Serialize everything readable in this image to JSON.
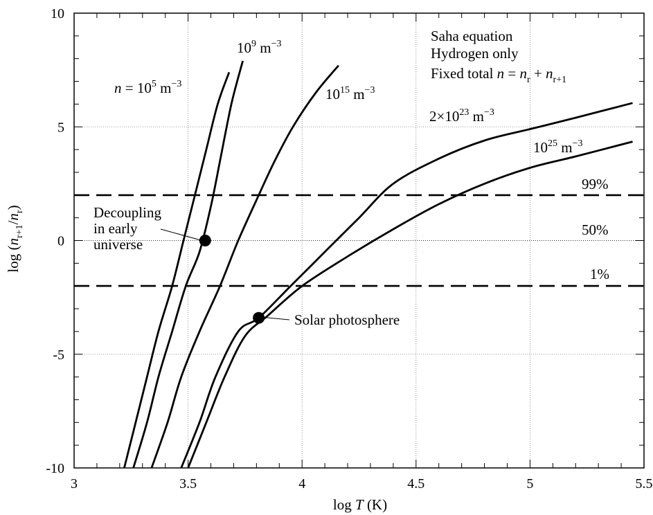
{
  "chart_data": {
    "type": "line",
    "xlabel": "log T (K)",
    "ylabel": "log (n_{r+1}/n_r)",
    "xlim": [
      3,
      5.5
    ],
    "ylim": [
      -10,
      10
    ],
    "x_ticks": [
      "3",
      "3.5",
      "4",
      "4.5",
      "5",
      "5.5"
    ],
    "y_ticks": [
      "-10",
      "-5",
      "0",
      "5",
      "10"
    ],
    "grid": true,
    "info_lines": [
      "Saha equation",
      "Hydrogen only",
      "Fixed total n = n_r + n_{r+1}"
    ],
    "reference_lines": [
      {
        "y": 1.995,
        "style": "dashed",
        "label": "99%"
      },
      {
        "y": 0,
        "style": "dotted",
        "label": "50%"
      },
      {
        "y": -1.995,
        "style": "dashed",
        "label": "1%"
      }
    ],
    "series": [
      {
        "name": "n = 10^5 m^-3",
        "points": [
          [
            3.22,
            -10
          ],
          [
            3.27,
            -8
          ],
          [
            3.32,
            -6
          ],
          [
            3.37,
            -4
          ],
          [
            3.43,
            -2
          ],
          [
            3.48,
            0
          ],
          [
            3.53,
            2
          ],
          [
            3.58,
            4
          ],
          [
            3.63,
            6
          ],
          [
            3.68,
            7.4
          ]
        ]
      },
      {
        "name": "10^9 m^-3",
        "points": [
          [
            3.26,
            -10
          ],
          [
            3.32,
            -8
          ],
          [
            3.37,
            -6
          ],
          [
            3.43,
            -4
          ],
          [
            3.49,
            -2
          ],
          [
            3.55,
            -0.5
          ],
          [
            3.6,
            1.5
          ],
          [
            3.64,
            3.5
          ],
          [
            3.69,
            6
          ],
          [
            3.74,
            7.9
          ]
        ]
      },
      {
        "name": "10^15 m^-3",
        "points": [
          [
            3.34,
            -10
          ],
          [
            3.41,
            -8
          ],
          [
            3.47,
            -6
          ],
          [
            3.55,
            -4
          ],
          [
            3.64,
            -2
          ],
          [
            3.72,
            0
          ],
          [
            3.81,
            2
          ],
          [
            3.88,
            3.5
          ],
          [
            3.96,
            5
          ],
          [
            4.06,
            6.5
          ],
          [
            4.16,
            7.7
          ]
        ]
      },
      {
        "name": "2×10^23 m^-3",
        "points": [
          [
            3.47,
            -10
          ],
          [
            3.55,
            -8
          ],
          [
            3.62,
            -6
          ],
          [
            3.72,
            -4
          ],
          [
            3.81,
            -3.4
          ],
          [
            3.95,
            -2
          ],
          [
            4.1,
            -0.5
          ],
          [
            4.25,
            1
          ],
          [
            4.4,
            2.5
          ],
          [
            4.6,
            3.6
          ],
          [
            4.8,
            4.4
          ],
          [
            5.0,
            4.9
          ],
          [
            5.2,
            5.4
          ],
          [
            5.45,
            6.05
          ]
        ]
      },
      {
        "name": "10^25 m^-3",
        "points": [
          [
            3.5,
            -10
          ],
          [
            3.58,
            -8
          ],
          [
            3.66,
            -6
          ],
          [
            3.75,
            -4.2
          ],
          [
            3.85,
            -3.3
          ],
          [
            4.0,
            -2
          ],
          [
            4.2,
            -0.7
          ],
          [
            4.4,
            0.5
          ],
          [
            4.6,
            1.6
          ],
          [
            4.8,
            2.5
          ],
          [
            5.0,
            3.2
          ],
          [
            5.2,
            3.7
          ],
          [
            5.45,
            4.35
          ]
        ]
      }
    ],
    "markers": [
      {
        "label": "Decoupling in early universe",
        "x": 3.575,
        "y": 0
      },
      {
        "label": "Solar photosphere",
        "x": 3.81,
        "y": -3.4
      }
    ]
  }
}
